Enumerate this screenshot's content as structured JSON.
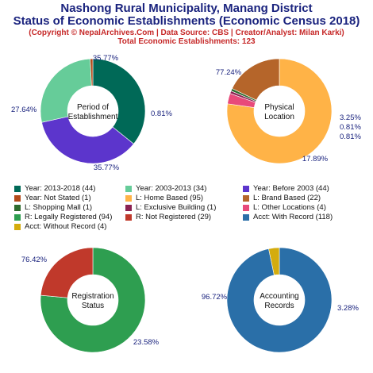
{
  "title": {
    "line1": "Nashong Rural Municipality, Manang District",
    "line2": "Status of Economic Establishments (Economic Census 2018)",
    "line3": "(Copyright © NepalArchives.Com | Data Source: CBS | Creator/Analyst: Milan Karki)",
    "line4": "Total Economic Establishments: 123"
  },
  "chart_data": [
    {
      "type": "pie",
      "center_label": [
        "Period of",
        "Establishment"
      ],
      "slices": [
        {
          "name": "Year: 2013-2018",
          "value": 44,
          "label": "35.77%",
          "color": "#006957"
        },
        {
          "name": "Year: Before 2003",
          "value": 44,
          "label": "35.77%",
          "color": "#5c35cc"
        },
        {
          "name": "Year: 2003-2013",
          "value": 34,
          "label": "27.64%",
          "color": "#66cc99"
        },
        {
          "name": "Year: Not Stated",
          "value": 1,
          "label": "0.81%",
          "color": "#b34a1a"
        }
      ]
    },
    {
      "type": "pie",
      "center_label": [
        "Physical",
        "Location"
      ],
      "slices": [
        {
          "name": "L: Home Based",
          "value": 95,
          "label": "77.24%",
          "color": "#ffb347"
        },
        {
          "name": "L: Other Locations",
          "value": 4,
          "label": "3.25%",
          "color": "#e84a7a"
        },
        {
          "name": "L: Exclusive Building",
          "value": 1,
          "label": "0.81%",
          "color": "#8b2252"
        },
        {
          "name": "L: Shopping Mall",
          "value": 1,
          "label": "0.81%",
          "color": "#2e6b2e"
        },
        {
          "name": "L: Brand Based",
          "value": 22,
          "label": "17.89%",
          "color": "#b5652a"
        }
      ]
    },
    {
      "type": "pie",
      "center_label": [
        "Registration",
        "Status"
      ],
      "slices": [
        {
          "name": "R: Legally Registered",
          "value": 94,
          "label": "76.42%",
          "color": "#2e9e50"
        },
        {
          "name": "R: Not Registered",
          "value": 29,
          "label": "23.58%",
          "color": "#c0392b"
        }
      ]
    },
    {
      "type": "pie",
      "center_label": [
        "Accounting",
        "Records"
      ],
      "slices": [
        {
          "name": "Acct: With Record",
          "value": 118,
          "label": "96.72%",
          "color": "#2a6fa8"
        },
        {
          "name": "Acct: Without Record",
          "value": 4,
          "label": "3.28%",
          "color": "#d4ac0d"
        }
      ]
    }
  ],
  "legend": [
    {
      "label": "Year: 2013-2018 (44)",
      "color": "#006957"
    },
    {
      "label": "Year: 2003-2013 (34)",
      "color": "#66cc99"
    },
    {
      "label": "Year: Before 2003 (44)",
      "color": "#5c35cc"
    },
    {
      "label": "Year: Not Stated (1)",
      "color": "#b34a1a"
    },
    {
      "label": "L: Home Based (95)",
      "color": "#ffb347"
    },
    {
      "label": "L: Brand Based (22)",
      "color": "#b5652a"
    },
    {
      "label": "L: Shopping Mall (1)",
      "color": "#2e6b2e"
    },
    {
      "label": "L: Exclusive Building (1)",
      "color": "#8b2252"
    },
    {
      "label": "L: Other Locations (4)",
      "color": "#e84a7a"
    },
    {
      "label": "R: Legally Registered (94)",
      "color": "#2e9e50"
    },
    {
      "label": "R: Not Registered (29)",
      "color": "#c0392b"
    },
    {
      "label": "Acct: With Record (118)",
      "color": "#2a6fa8"
    },
    {
      "label": "Acct: Without Record (4)",
      "color": "#d4ac0d"
    }
  ]
}
